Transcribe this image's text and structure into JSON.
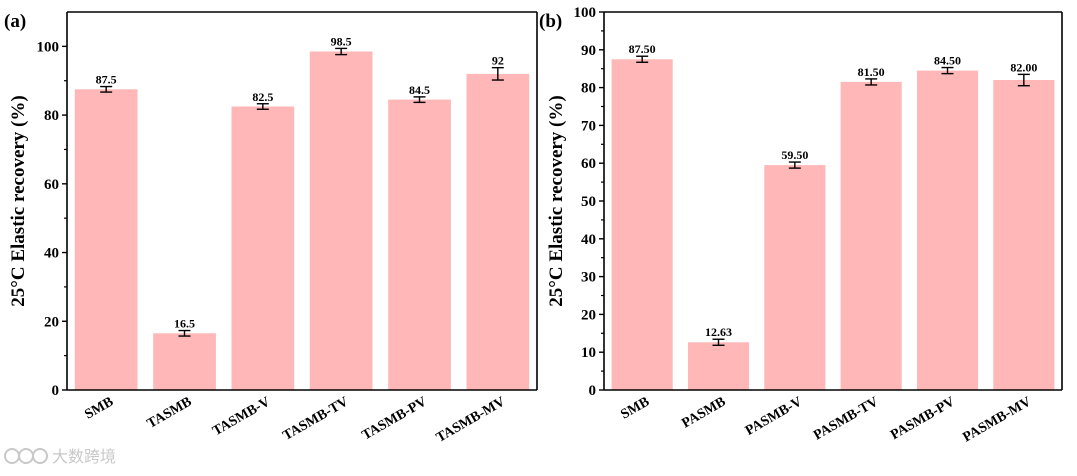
{
  "chart_data": [
    {
      "type": "bar",
      "panel_label": "(a)",
      "ylabel": "25°C Elastic recovery (%)",
      "categories": [
        "SMB",
        "TASMB",
        "TASMB-V",
        "TASMB-TV",
        "TASMB-PV",
        "TASMB-MV"
      ],
      "values": [
        87.5,
        16.5,
        82.5,
        98.5,
        84.5,
        92
      ],
      "value_labels": [
        "87.5",
        "16.5",
        "82.5",
        "98.5",
        "84.5",
        "92"
      ],
      "errors": [
        0.8,
        0.8,
        0.8,
        0.9,
        0.8,
        1.8
      ],
      "ylim": [
        0,
        110
      ],
      "yticks": [
        0,
        20,
        40,
        60,
        80,
        100
      ],
      "bar_color": "#ffb7b7"
    },
    {
      "type": "bar",
      "panel_label": "(b)",
      "ylabel": "25°C Elastic recovery (%)",
      "categories": [
        "SMB",
        "PASMB",
        "PASMB-V",
        "PASMB-TV",
        "PASMB-PV",
        "PASMB-MV"
      ],
      "values": [
        87.5,
        12.63,
        59.5,
        81.5,
        84.5,
        82.0
      ],
      "value_labels": [
        "87.50",
        "12.63",
        "59.50",
        "81.50",
        "84.50",
        "82.00"
      ],
      "errors": [
        0.8,
        0.8,
        0.8,
        0.8,
        0.8,
        1.5
      ],
      "ylim": [
        0,
        100
      ],
      "yticks": [
        0,
        10,
        20,
        30,
        40,
        50,
        60,
        70,
        80,
        90,
        100
      ],
      "bar_color": "#ffb7b7"
    }
  ],
  "watermark": {
    "text": "大数跨境"
  }
}
